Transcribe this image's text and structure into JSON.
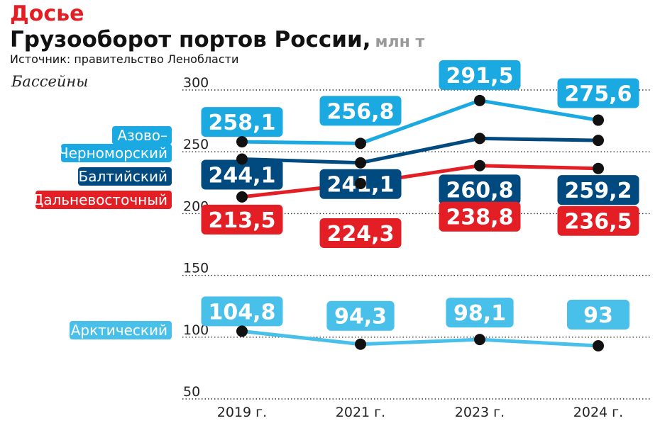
{
  "header": {
    "rubric": "Досье",
    "title": "Грузооборот портов России,",
    "units": "млн т",
    "source": "Источник: правительство Ленобласти"
  },
  "chart_data": {
    "type": "line",
    "title": "Грузооборот портов России, млн т",
    "group_label": "Бассейны",
    "categories": [
      "2019 г.",
      "2021 г.",
      "2023 г.",
      "2024 г."
    ],
    "yticks": [
      300,
      250,
      200,
      150,
      100,
      50
    ],
    "ylim": [
      50,
      300
    ],
    "grid": true,
    "series": [
      {
        "name": "Азово–Черноморский",
        "label_lines": [
          "Азово–",
          "Черноморский"
        ],
        "values": [
          258.1,
          256.8,
          291.5,
          275.6
        ],
        "labels": [
          "258,1",
          "256,8",
          "291,5",
          "275,6"
        ],
        "color": "#1ba9e1"
      },
      {
        "name": "Балтийский",
        "label_lines": [
          "Балтийский"
        ],
        "values": [
          244.1,
          241.1,
          260.8,
          259.2
        ],
        "labels": [
          "244,1",
          "241,1",
          "260,8",
          "259,2"
        ],
        "color": "#004a80"
      },
      {
        "name": "Дальневосточный",
        "label_lines": [
          "Дальневосточный"
        ],
        "values": [
          213.5,
          224.3,
          238.8,
          236.5
        ],
        "labels": [
          "213,5",
          "224,3",
          "238,8",
          "236,5"
        ],
        "color": "#e31e24"
      },
      {
        "name": "Арктический",
        "label_lines": [
          "Арктический"
        ],
        "values": [
          104.8,
          94.3,
          98.1,
          93
        ],
        "labels": [
          "104,8",
          "94,3",
          "98,1",
          "93"
        ],
        "color": "#49c0ea"
      }
    ]
  }
}
